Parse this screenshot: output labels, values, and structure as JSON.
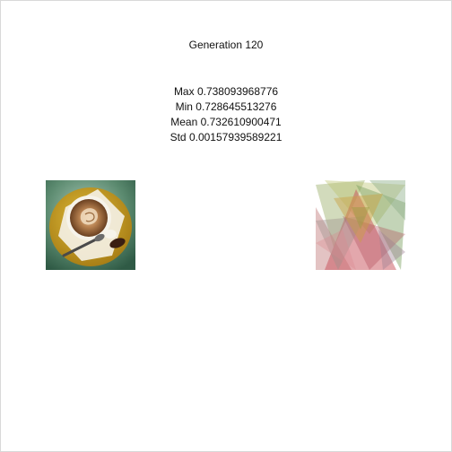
{
  "window": {
    "generation_label": "Generation 120"
  },
  "stats": {
    "max_label": "Max 0.738093968776",
    "min_label": "Min 0.728645513276",
    "mean_label": "Mean 0.732610900471",
    "std_label": "Std 0.00157939589221"
  },
  "images": {
    "target": {
      "subject": "coffee-cup-latte-art",
      "colors": {
        "background": "#5b8a6f",
        "saucer": "#c9a227",
        "cup": "#f2efe6",
        "coffee": "#7a4a24",
        "crema": "#d9b48a"
      }
    },
    "evolved": {
      "subject": "overlapping-translucent-triangles",
      "colors": {
        "red": "#c8505a",
        "green": "#7aa060",
        "olive": "#9b9b40",
        "gray": "#9c8f8a"
      }
    }
  }
}
